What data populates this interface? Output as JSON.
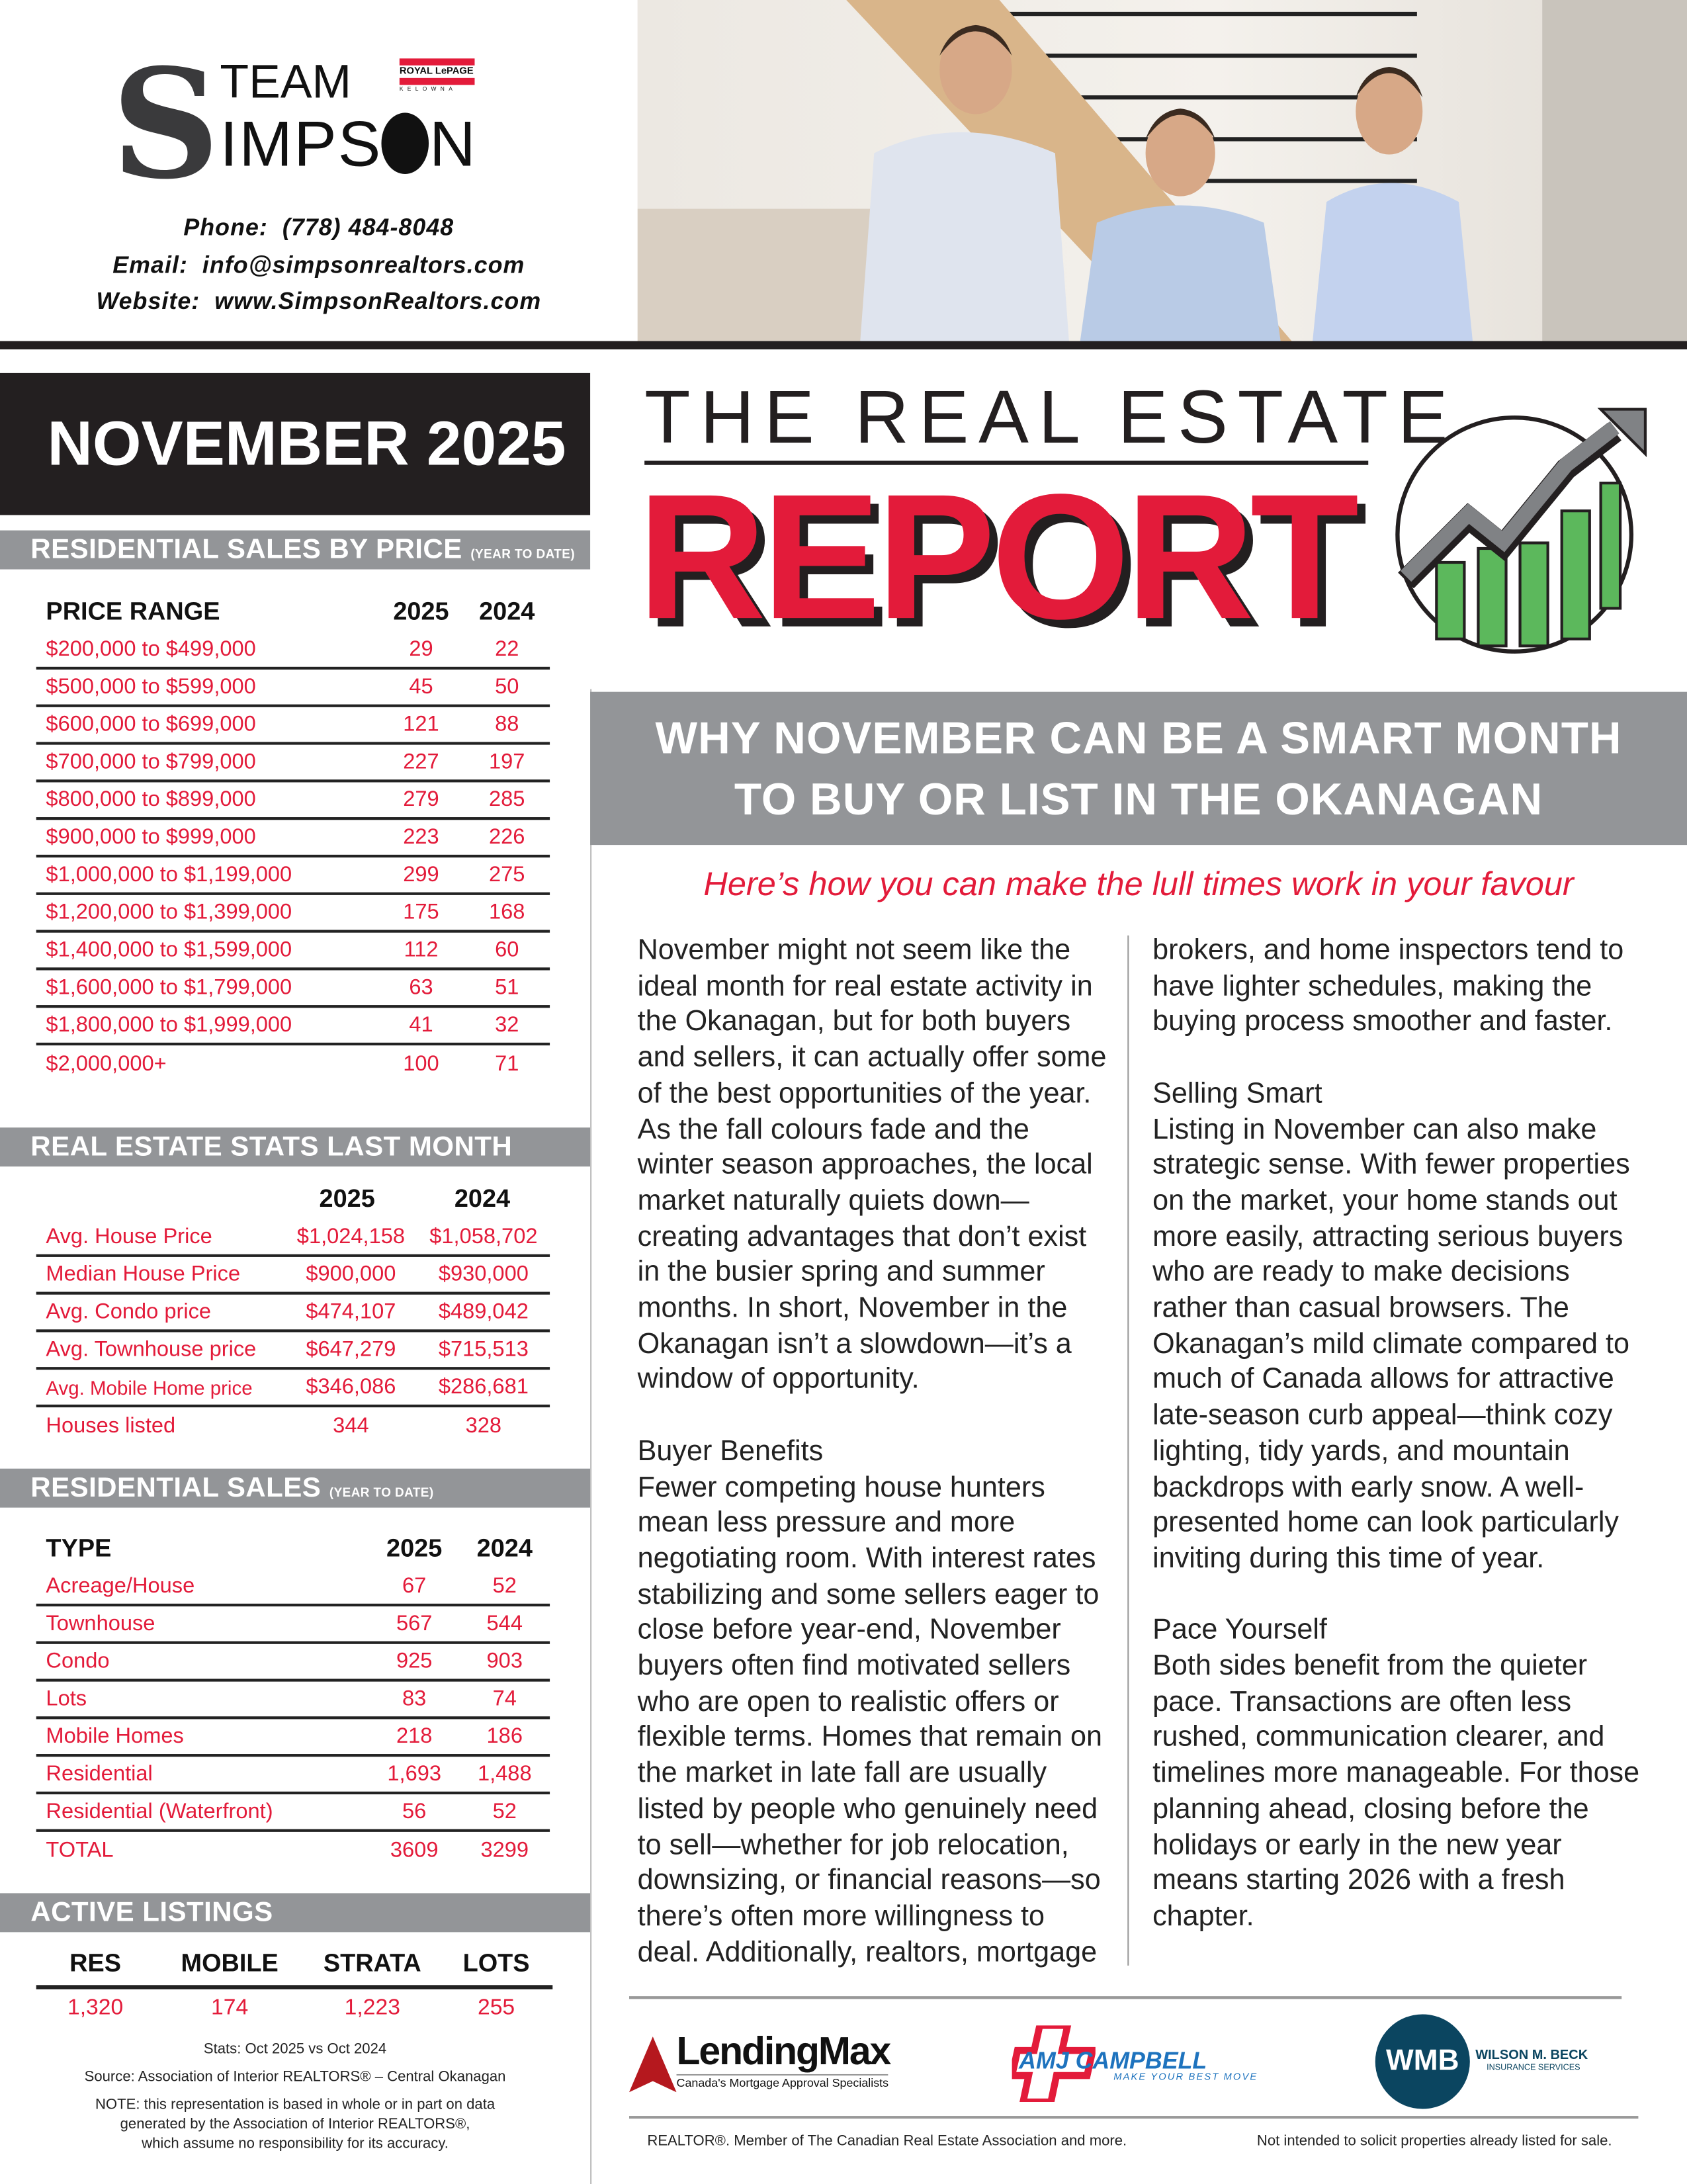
{
  "brand": {
    "logo_text_top": "TEAM",
    "logo_text_main": "SIMPSON",
    "brokerage_logo": "ROYAL LePAGE KELOWNA",
    "phone_label": "Phone:",
    "phone": "(778) 484-8048",
    "email_label": "Email:",
    "email": "info@simpsonrealtors.com",
    "website_label": "Website:",
    "website": "www.SimpsonRealtors.com"
  },
  "month_label": "NOVEMBER 2025",
  "title": {
    "line1": "THE REAL ESTATE",
    "line2": "REPORT",
    "icon": "growth-chart-icon"
  },
  "colors": {
    "red": "#e31b3a",
    "gray": "#939598",
    "black": "#231f20",
    "green": "#5cb85c"
  },
  "sales_by_price": {
    "heading": "RESIDENTIAL SALES BY PRICE",
    "heading_note": "(YEAR TO DATE)",
    "columns": [
      "PRICE RANGE",
      "2025",
      "2024"
    ],
    "rows": [
      [
        "$200,000 to $499,000",
        "29",
        "22"
      ],
      [
        "$500,000 to $599,000",
        "45",
        "50"
      ],
      [
        "$600,000 to $699,000",
        "121",
        "88"
      ],
      [
        "$700,000 to $799,000",
        "227",
        "197"
      ],
      [
        "$800,000 to $899,000",
        "279",
        "285"
      ],
      [
        "$900,000 to $999,000",
        "223",
        "226"
      ],
      [
        "$1,000,000 to $1,199,000",
        "299",
        "275"
      ],
      [
        "$1,200,000 to $1,399,000",
        "175",
        "168"
      ],
      [
        "$1,400,000 to $1,599,000",
        "112",
        "60"
      ],
      [
        "$1,600,000 to $1,799,000",
        "63",
        "51"
      ],
      [
        "$1,800,000 to $1,999,000",
        "41",
        "32"
      ],
      [
        "$2,000,000+",
        "100",
        "71"
      ]
    ]
  },
  "stats_last_month": {
    "heading": "REAL ESTATE STATS LAST MONTH",
    "columns": [
      "",
      "2025",
      "2024"
    ],
    "rows": [
      [
        "Avg. House Price",
        "$1,024,158",
        "$1,058,702"
      ],
      [
        "Median House Price",
        "$900,000",
        "$930,000"
      ],
      [
        "Avg. Condo price",
        "$474,107",
        "$489,042"
      ],
      [
        "Avg. Townhouse price",
        "$647,279",
        "$715,513"
      ],
      [
        "Avg. Mobile Home price",
        "$346,086",
        "$286,681"
      ],
      [
        "Houses listed",
        "344",
        "328"
      ]
    ]
  },
  "residential_sales": {
    "heading": "RESIDENTIAL SALES",
    "heading_note": "(YEAR TO DATE)",
    "columns": [
      "TYPE",
      "2025",
      "2024"
    ],
    "rows": [
      [
        "Acreage/House",
        "67",
        "52"
      ],
      [
        "Townhouse",
        "567",
        "544"
      ],
      [
        "Condo",
        "925",
        "903"
      ],
      [
        "Lots",
        "83",
        "74"
      ],
      [
        "Mobile Homes",
        "218",
        "186"
      ],
      [
        "Residential",
        "1,693",
        "1,488"
      ],
      [
        "Residential (Waterfront)",
        "56",
        "52"
      ],
      [
        "TOTAL",
        "3609",
        "3299"
      ]
    ]
  },
  "active_listings": {
    "heading": "ACTIVE LISTINGS",
    "columns": [
      "RES",
      "MOBILE",
      "STRATA",
      "LOTS"
    ],
    "values": [
      "1,320",
      "174",
      "1,223",
      "255"
    ]
  },
  "notes": {
    "stats_period": "Stats: Oct 2025 vs Oct 2024",
    "source": "Source: Association of Interior REALTORS® – Central Okanagan",
    "disclaimer_1": "NOTE: this representation is based in whole or in part on data",
    "disclaimer_2": "generated by the Association of Interior REALTORS®,",
    "disclaimer_3": "which assume no responsibility for its accuracy."
  },
  "article": {
    "headline_1": "WHY NOVEMBER CAN BE A SMART MONTH",
    "headline_2": "TO BUY OR LIST IN THE OKANAGAN",
    "subhead": "Here’s how you can make the lull times work in your favour",
    "intro": "November might not seem like the ideal month for real estate activity in the Okanagan, but for both buyers and sellers, it can actually offer some of the best opportunities of the year. As the fall colours fade and the winter season approaches, the local market naturally quiets down—creating advantages that don’t exist in the busier spring and summer months. In short, November in the Okanagan isn’t a slowdown—it’s a window of opportunity.",
    "buyer_heading": "Buyer Benefits",
    "buyer_text": "Fewer competing house hunters mean less pressure and more negotiating room. With interest rates stabilizing and some sellers eager to close before year-end, November buyers often find motivated sellers who are open to realistic offers or flexible terms. Homes that remain on the market in late fall are usually listed by people who genuinely need to sell—whether for job relocation, downsizing, or financial reasons—so there’s often more willingness to deal. Additionally, realtors, mortgage",
    "buyer_text_cont": "brokers, and home inspectors tend to have lighter schedules, making the buying process smoother and faster.",
    "seller_heading": "Selling Smart",
    "seller_text": "Listing in November can also make strategic sense. With fewer properties on the market, your home stands out more easily, attracting serious buyers who are ready to make decisions rather than casual browsers. The Okanagan’s mild climate compared to much of Canada allows for attractive late-season curb appeal—think cozy lighting, tidy yards, and mountain backdrops with early snow. A well-presented home can look particularly inviting during this time of year.",
    "pace_heading": "Pace Yourself",
    "pace_text": "Both sides benefit from the quieter pace. Transactions are often less rushed, communication clearer, and timelines more manageable. For those planning ahead, closing before the holidays or early in the new year means starting 2026 with a fresh chapter."
  },
  "sponsors": {
    "lendingmax": "LendingMax",
    "lendingmax_tagline": "Canada's Mortgage Approval Specialists",
    "amj": "AMJ CAMPBELL",
    "amj_tagline": "MAKE YOUR BEST MOVE",
    "wmb": "WMB",
    "wmb_name": "WILSON M. BECK",
    "wmb_tagline": "INSURANCE SERVICES"
  },
  "footer": {
    "left": "REALTOR®. Member of The Canadian Real Estate Association and more.",
    "right": "Not intended to solicit properties already listed for sale."
  }
}
